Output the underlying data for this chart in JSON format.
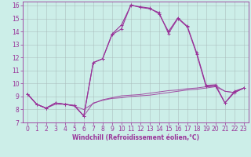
{
  "xlabel": "Windchill (Refroidissement éolien,°C)",
  "background_color": "#cceee8",
  "line_color": "#993399",
  "grid_color": "#aabbbb",
  "x_values": [
    0,
    1,
    2,
    3,
    4,
    5,
    6,
    7,
    8,
    9,
    10,
    11,
    12,
    13,
    14,
    15,
    16,
    17,
    18,
    19,
    20,
    21,
    22,
    23
  ],
  "series": [
    {
      "y": [
        9.2,
        8.4,
        8.1,
        8.4,
        8.4,
        8.3,
        7.5,
        8.5,
        8.7,
        8.85,
        8.9,
        9.0,
        9.05,
        9.1,
        9.2,
        9.3,
        9.4,
        9.5,
        9.55,
        9.65,
        9.75,
        9.4,
        9.3,
        9.65
      ],
      "marker": false,
      "linewidth": 0.7,
      "alpha": 0.85
    },
    {
      "y": [
        9.2,
        8.4,
        8.1,
        8.5,
        8.4,
        8.25,
        8.0,
        8.45,
        8.75,
        8.9,
        9.05,
        9.1,
        9.15,
        9.25,
        9.35,
        9.45,
        9.5,
        9.6,
        9.65,
        9.75,
        9.85,
        9.4,
        9.3,
        9.65
      ],
      "marker": false,
      "linewidth": 0.7,
      "alpha": 0.85
    },
    {
      "y": [
        9.2,
        8.4,
        8.1,
        8.5,
        8.4,
        8.3,
        7.5,
        11.6,
        11.9,
        13.8,
        14.5,
        16.0,
        15.9,
        15.8,
        15.35,
        14.0,
        15.05,
        14.4,
        12.35,
        9.85,
        9.9,
        8.5,
        9.4,
        9.65
      ],
      "marker": true,
      "linewidth": 0.8,
      "alpha": 1.0
    },
    {
      "y": [
        9.2,
        8.4,
        8.1,
        8.5,
        8.4,
        8.3,
        7.5,
        11.6,
        11.9,
        13.75,
        14.2,
        16.05,
        15.85,
        15.75,
        15.45,
        13.85,
        15.0,
        14.35,
        12.25,
        9.75,
        9.8,
        8.5,
        9.3,
        9.65
      ],
      "marker": true,
      "linewidth": 0.8,
      "alpha": 1.0
    }
  ],
  "ylim": [
    7,
    16.3
  ],
  "xlim": [
    -0.5,
    23.5
  ],
  "yticks": [
    7,
    8,
    9,
    10,
    11,
    12,
    13,
    14,
    15,
    16
  ],
  "xticks": [
    0,
    1,
    2,
    3,
    4,
    5,
    6,
    7,
    8,
    9,
    10,
    11,
    12,
    13,
    14,
    15,
    16,
    17,
    18,
    19,
    20,
    21,
    22,
    23
  ],
  "tick_fontsize": 5.5,
  "xlabel_fontsize": 5.5
}
